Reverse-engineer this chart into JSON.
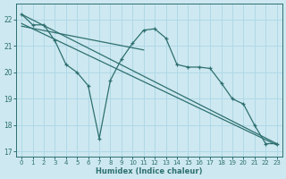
{
  "xlabel": "Humidex (Indice chaleur)",
  "bg_color": "#cde8f0",
  "grid_color": "#b0d8e8",
  "line_color": "#2e7070",
  "xlim": [
    -0.5,
    23.5
  ],
  "ylim": [
    16.8,
    22.6
  ],
  "yticks": [
    17,
    18,
    19,
    20,
    21,
    22
  ],
  "xticks": [
    0,
    1,
    2,
    3,
    4,
    5,
    6,
    7,
    8,
    9,
    10,
    11,
    12,
    13,
    14,
    15,
    16,
    17,
    18,
    19,
    20,
    21,
    22,
    23
  ],
  "main_x": [
    0,
    1,
    2,
    3,
    4,
    5,
    6,
    7,
    8,
    9,
    10,
    11,
    12,
    13,
    14,
    15,
    16,
    17,
    18,
    19,
    20,
    21,
    22,
    23
  ],
  "main_y": [
    22.2,
    21.8,
    21.8,
    21.2,
    20.3,
    20.0,
    19.5,
    17.5,
    19.7,
    20.5,
    21.1,
    21.6,
    21.65,
    21.3,
    20.3,
    20.2,
    20.2,
    20.15,
    19.6,
    19.0,
    18.8,
    18.0,
    17.3,
    17.3
  ],
  "line1_x": [
    0,
    23
  ],
  "line1_y": [
    22.2,
    17.3
  ],
  "line2_x": [
    0,
    23
  ],
  "line2_y": [
    21.85,
    17.25
  ],
  "line3_x": [
    0,
    11
  ],
  "line3_y": [
    21.75,
    20.85
  ]
}
